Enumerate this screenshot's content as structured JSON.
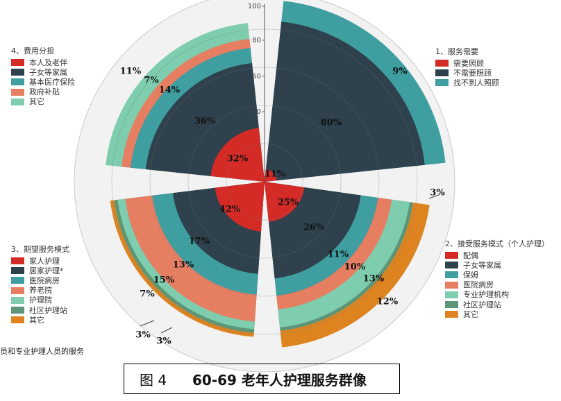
{
  "chart_data": {
    "type": "polar-bar",
    "title": "",
    "radial_axis": {
      "range": [
        0,
        100
      ],
      "ticks": [
        "100",
        "80",
        "60",
        "40"
      ]
    },
    "groups": [
      {
        "name": "1、服务需要",
        "series": [
          {
            "name": "需要照顾",
            "value": 11,
            "label": "11%",
            "color": "#d42b27"
          },
          {
            "name": "不需要照顾",
            "value": 80,
            "label": "80%",
            "color": "#2e414d"
          },
          {
            "name": "找不到人照顾",
            "value": 9,
            "label": "9%",
            "color": "#3f9ea0"
          }
        ]
      },
      {
        "name": "2、接受服务模式（个人护理）",
        "series": [
          {
            "name": "配偶",
            "value": 25,
            "label": "25%",
            "color": "#d42b27"
          },
          {
            "name": "子女等家属",
            "value": 26,
            "label": "26%",
            "color": "#2e414d"
          },
          {
            "name": "保姆",
            "value": 11,
            "label": "11%",
            "color": "#3f9ea0"
          },
          {
            "name": "医院病房",
            "value": 10,
            "label": "10%",
            "color": "#e67e62"
          },
          {
            "name": "专业护理机构",
            "value": 13,
            "label": "13%",
            "color": "#7ecdae"
          },
          {
            "name": "社区护理站",
            "value": 3,
            "label": "3%",
            "color": "#5c9578"
          },
          {
            "name": "其它",
            "value": 12,
            "label": "12%",
            "color": "#dd8420"
          }
        ]
      },
      {
        "name": "3、期望服务模式",
        "series": [
          {
            "name": "家人护理",
            "value": 42,
            "label": "42%",
            "color": "#d42b27"
          },
          {
            "name": "居家护理*",
            "value": 17,
            "label": "17%",
            "color": "#2e414d"
          },
          {
            "name": "医院病房",
            "value": 13,
            "label": "13%",
            "color": "#3f9ea0"
          },
          {
            "name": "养老院",
            "value": 15,
            "label": "15%",
            "color": "#e67e62"
          },
          {
            "name": "护理院",
            "value": 7,
            "label": "7%",
            "color": "#7ecdae"
          },
          {
            "name": "社区护理站",
            "value": 3,
            "label": "3%",
            "color": "#5c9578"
          },
          {
            "name": "其它",
            "value": 3,
            "label": "3%",
            "color": "#dd8420"
          }
        ]
      },
      {
        "name": "4、费用分担",
        "series": [
          {
            "name": "本人及老伴",
            "value": 32,
            "label": "32%",
            "color": "#d42b27"
          },
          {
            "name": "子女等家属",
            "value": 36,
            "label": "36%",
            "color": "#2e414d"
          },
          {
            "name": "基本医疗保险",
            "value": 14,
            "label": "14%",
            "color": "#3f9ea0"
          },
          {
            "name": "政府补贴",
            "value": 7,
            "label": "7%",
            "color": "#e67e62"
          },
          {
            "name": "其它",
            "value": 11,
            "label": "11%",
            "color": "#7ecdae"
          }
        ]
      }
    ]
  },
  "caption": {
    "label": "图 4",
    "title": "60-69 老年人护理服务群像"
  },
  "footnote": "员和专业护理人员的服务"
}
